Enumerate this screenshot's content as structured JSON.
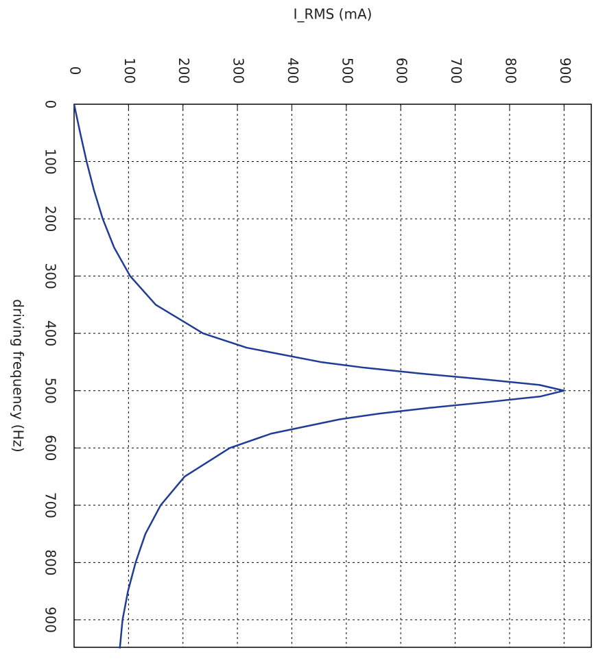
{
  "chart_data": {
    "type": "line",
    "ylabel": "I_RMS (mA)",
    "xlabel": "driving frequency (Hz)",
    "x": [
      0,
      50,
      100,
      150,
      200,
      250,
      300,
      350,
      400,
      425,
      450,
      460,
      470,
      480,
      490,
      500,
      510,
      520,
      530,
      540,
      550,
      575,
      600,
      650,
      700,
      750,
      800,
      850,
      900,
      950
    ],
    "series": [
      {
        "color": "#1f3c96",
        "values": [
          0,
          11.2,
          23,
          36.5,
          52.6,
          73.5,
          103,
          150,
          237,
          317,
          453,
          534,
          635,
          750,
          855,
          900,
          857,
          759,
          653,
          561,
          488,
          362,
          286,
          203,
          159,
          131,
          113,
          99,
          89,
          84
        ]
      }
    ],
    "xlim": [
      0,
      948
    ],
    "xticks": [
      0,
      100,
      200,
      300,
      400,
      500,
      600,
      700,
      800,
      900
    ],
    "ylim": [
      0,
      950
    ],
    "yticks": [
      0,
      100,
      200,
      300,
      400,
      500,
      600,
      700,
      800,
      900
    ],
    "grid": true,
    "orientation": "rotated"
  }
}
